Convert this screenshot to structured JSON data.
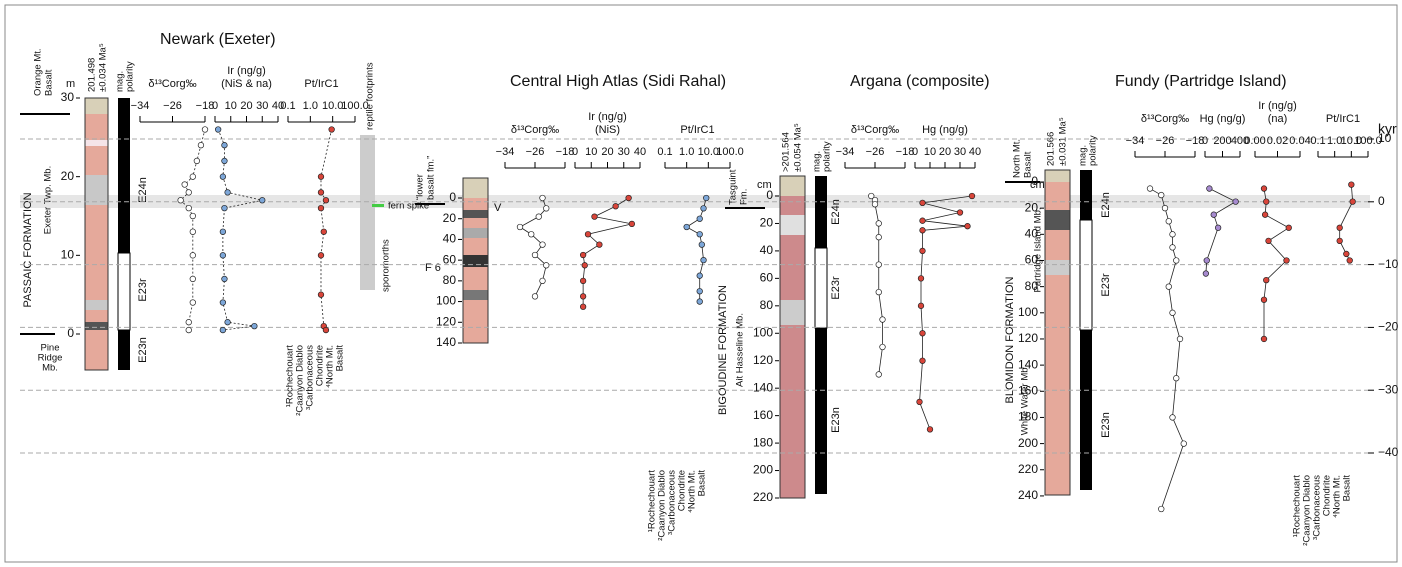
{
  "kyr": {
    "label": "kyr",
    "lim": [
      10,
      -40
    ],
    "ticks": [
      10,
      0,
      {
        "value": -10,
        "label": "−10"
      },
      {
        "value": -20,
        "label": "−20"
      },
      {
        "value": -30,
        "label": "−30"
      },
      {
        "value": -40,
        "label": "−40"
      }
    ]
  },
  "newark": {
    "title": "Newark (Exeter)",
    "unit": "m",
    "depth_lim": [
      0,
      30
    ],
    "depth_ticks": [
      0,
      10,
      20,
      30
    ],
    "top_unit": [
      "Orange Mt.",
      "Basalt"
    ],
    "age": [
      "201.498",
      "±0.034 Ma⁵"
    ],
    "polarity": [
      "mag.",
      "polarity"
    ],
    "chrons": [
      "E24n",
      "E23r",
      "E23n"
    ],
    "formation": "PASSAIC FORMATION",
    "member": "Exeter Twp. Mb.",
    "lower_member": [
      "Pine",
      "Ridge",
      "Mb."
    ],
    "notes": [
      "reptile footprints",
      "fern spike",
      "sporomorths"
    ],
    "refs": [
      "¹Rochechouart",
      "²Caanyon Diablo",
      "³Carbonaceous",
      "Chondrite",
      "⁴North Mt.",
      "Basalt"
    ],
    "curves": [
      {
        "label": [
          "δ¹³Corg‰"
        ],
        "color": "#ffffff",
        "xlim": [
          -34,
          -18
        ],
        "ticks": [
          {
            "value": -34,
            "label": "−34"
          },
          {
            "value": -26,
            "label": "−26"
          },
          {
            "value": -18,
            "label": "−18"
          }
        ],
        "depth": [
          26,
          24,
          22,
          20,
          19,
          18,
          17,
          16,
          15,
          13,
          10,
          7,
          4,
          1.5,
          0.5
        ],
        "values": [
          -18,
          -19,
          -20,
          -21,
          -23,
          -22,
          -24,
          -22,
          -21,
          -21,
          -21,
          -21,
          -21,
          -22,
          -22
        ]
      },
      {
        "label": [
          "Ir (ng/g)",
          "(NiS & na)"
        ],
        "color": "#7da7d9",
        "xlim": [
          0,
          40
        ],
        "ticks": [
          0,
          10,
          20,
          30,
          40
        ],
        "depth": [
          26,
          24,
          22,
          20,
          18,
          17,
          16,
          13,
          10,
          7,
          4,
          1.5,
          1,
          0.5
        ],
        "values": [
          2,
          6,
          6,
          5,
          8,
          30,
          6,
          5,
          5,
          6,
          5,
          8,
          25,
          5
        ]
      },
      {
        "label": [
          "Pt/IrC1"
        ],
        "color": "#d9453a",
        "log": true,
        "xlim": [
          0.1,
          100
        ],
        "ticks": [
          0.1,
          {
            "value": 1,
            "label": "1.0"
          },
          {
            "value": 10,
            "label": "10.0"
          },
          {
            "value": 100,
            "label": "100.0"
          }
        ],
        "depth": [
          26,
          20,
          18,
          17,
          16,
          13,
          10,
          5,
          1,
          0.5
        ],
        "values": [
          9,
          3,
          3,
          5,
          3,
          4,
          3,
          3,
          4,
          5
        ]
      }
    ]
  },
  "atlas": {
    "title": "Central High Atlas (Sidi Rahal)",
    "depth_lim": [
      0,
      140
    ],
    "depth_ticks": [
      0,
      20,
      40,
      60,
      80,
      100,
      120,
      140
    ],
    "unit_label": [
      "“lower",
      "basalt fm.”"
    ],
    "marks": [
      "V",
      "F 6"
    ],
    "refs": [
      "¹Rochechouart",
      "²Caanyon Diablo",
      "³Carbonaceous",
      "Chondrite",
      "⁴North Mt.",
      "Basalt"
    ],
    "curves": [
      {
        "label": [
          "δ¹³Corg‰"
        ],
        "color": "#ffffff",
        "xlim": [
          -34,
          -18
        ],
        "ticks": [
          {
            "value": -34,
            "label": "−34"
          },
          {
            "value": -26,
            "label": "−26"
          },
          {
            "value": -18,
            "label": "−18"
          }
        ],
        "depth": [
          0,
          10,
          18,
          28,
          35,
          45,
          55,
          65,
          80,
          95
        ],
        "values": [
          -24,
          -23,
          -25,
          -30,
          -27,
          -24,
          -26,
          -23,
          -24,
          -26
        ]
      },
      {
        "label": [
          "Ir (ng/g)",
          "(NiS)"
        ],
        "color": "#d9453a",
        "xlim": [
          0,
          40
        ],
        "ticks": [
          0,
          10,
          20,
          30,
          40
        ],
        "depth": [
          0,
          8,
          18,
          25,
          35,
          45,
          55,
          65,
          80,
          95,
          105
        ],
        "values": [
          33,
          25,
          12,
          35,
          8,
          15,
          5,
          6,
          5,
          5,
          5
        ]
      },
      {
        "label": [
          "Pt/IrC1"
        ],
        "color": "#7da7d9",
        "log": true,
        "xlim": [
          0.1,
          100
        ],
        "ticks": [
          0.1,
          {
            "value": 1,
            "label": "1.0"
          },
          {
            "value": 10,
            "label": "10.0"
          },
          {
            "value": 100,
            "label": "100.0"
          }
        ],
        "depth": [
          0,
          10,
          20,
          28,
          35,
          45,
          60,
          75,
          90,
          100
        ],
        "values": [
          8,
          6,
          4,
          1,
          4,
          5,
          6,
          4,
          4,
          4
        ]
      }
    ]
  },
  "argana": {
    "title": "Argana (composite)",
    "unit": "cm",
    "depth_lim": [
      0,
      220
    ],
    "depth_ticks": [
      0,
      20,
      40,
      60,
      80,
      100,
      120,
      140,
      160,
      180,
      200,
      220
    ],
    "top_unit": [
      "Tasguint",
      "Fm."
    ],
    "age": [
      ">201.564",
      "±0.054 Ma⁵"
    ],
    "polarity": [
      "mag.",
      "polarity"
    ],
    "chrons": [
      "E24n",
      "E23r",
      "E23n"
    ],
    "formation": "BIGOUDINE FORMATION",
    "member": "Ait Hasseline Mb.",
    "curves": [
      {
        "label": [
          "δ¹³Corg‰"
        ],
        "color": "#ffffff",
        "xlim": [
          -34,
          -18
        ],
        "ticks": [
          {
            "value": -34,
            "label": "−34"
          },
          {
            "value": -26,
            "label": "−26"
          },
          {
            "value": -18,
            "label": "−18"
          }
        ],
        "depth": [
          0,
          3,
          6,
          20,
          30,
          50,
          70,
          90,
          110,
          130
        ],
        "values": [
          -27,
          -26,
          -26,
          -25,
          -25,
          -25,
          -25,
          -24,
          -24,
          -25
        ]
      },
      {
        "label": [
          "Hg (ng/g)"
        ],
        "color": "#d9453a",
        "xlim": [
          0,
          40
        ],
        "ticks": [
          0,
          10,
          20,
          30,
          40
        ],
        "depth": [
          0,
          5,
          12,
          18,
          22,
          25,
          40,
          60,
          80,
          100,
          120,
          150,
          170
        ],
        "values": [
          38,
          5,
          30,
          5,
          35,
          5,
          5,
          4,
          4,
          5,
          5,
          3,
          10
        ]
      }
    ]
  },
  "fundy": {
    "title": "Fundy (Partridge Island)",
    "unit": "cm",
    "depth_lim": [
      0,
      250
    ],
    "depth_ticks": [
      0,
      20,
      40,
      60,
      80,
      100,
      120,
      140,
      160,
      180,
      200,
      220,
      240
    ],
    "top_unit": [
      "North Mt.",
      "Basalt"
    ],
    "age": [
      "201.566",
      "±0.031 Ma⁵"
    ],
    "polarity": [
      "mag.",
      "polarity"
    ],
    "chrons": [
      "E24n",
      "E23r",
      "E23n"
    ],
    "formation": "BLOMIDON FORMATION",
    "member": "White Water Mb.",
    "upper_member": "Partridge Island Mb.",
    "refs": [
      "¹Rochechouart",
      "²Caanyon Diablo",
      "³Carbonaceous",
      "Chondrite",
      "⁴North Mt.",
      "Basalt"
    ],
    "curves": [
      {
        "label": [
          "δ¹³Corg‰"
        ],
        "color": "#ffffff",
        "xlim": [
          -34,
          -18
        ],
        "ticks": [
          {
            "value": -34,
            "label": "−34"
          },
          {
            "value": -26,
            "label": "−26"
          },
          {
            "value": -18,
            "label": "−18"
          }
        ],
        "depth": [
          5,
          10,
          20,
          30,
          40,
          50,
          60,
          80,
          100,
          120,
          150,
          180,
          200,
          250
        ],
        "values": [
          -30,
          -27,
          -26,
          -25,
          -24,
          -24,
          -23,
          -25,
          -24,
          -22,
          -23,
          -24,
          -21,
          -27
        ]
      },
      {
        "label": [
          "Hg (ng/g)"
        ],
        "color": "#a78bd0",
        "xlim": [
          0,
          400
        ],
        "ticks": [
          0,
          200,
          400
        ],
        "depth": [
          5,
          15,
          25,
          35,
          60,
          70
        ],
        "values": [
          50,
          350,
          100,
          150,
          20,
          10
        ]
      },
      {
        "label": [
          "Ir (ng/g)",
          "(na)"
        ],
        "color": "#d9453a",
        "xlim": [
          0,
          0.04
        ],
        "ticks": [
          {
            "value": 0,
            "label": "0.00"
          },
          {
            "value": 0.02,
            "label": "0.02"
          },
          {
            "value": 0.04,
            "label": "0.04"
          }
        ],
        "depth": [
          5,
          15,
          25,
          35,
          45,
          60,
          75,
          90,
          120
        ],
        "values": [
          0.008,
          0.01,
          0.009,
          0.03,
          0.012,
          0.028,
          0.01,
          0.008,
          0.008
        ]
      },
      {
        "label": [
          "Pt/IrC1"
        ],
        "color": "#d9453a",
        "log": true,
        "xlim": [
          0.1,
          100
        ],
        "ticks": [
          0.1,
          {
            "value": 1,
            "label": "1.0"
          },
          {
            "value": 10,
            "label": "10.0"
          },
          {
            "value": 100,
            "label": "100.0"
          }
        ],
        "depth": [
          2,
          15,
          35,
          45,
          55,
          60
        ],
        "values": [
          10,
          12,
          2,
          2,
          5,
          8
        ]
      }
    ]
  }
}
